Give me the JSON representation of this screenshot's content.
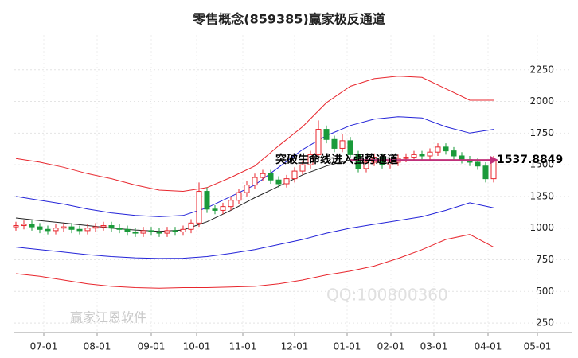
{
  "chart_data": {
    "type": "candlestick",
    "title": "零售概念(859385)赢家极反通道",
    "x": [
      0,
      1,
      2,
      3,
      4,
      5,
      6,
      7,
      8,
      9,
      10,
      11,
      12,
      13,
      14,
      15,
      16,
      17,
      18,
      19,
      20,
      21,
      22,
      23,
      24,
      25,
      26,
      27,
      28,
      29,
      30,
      31,
      32,
      33,
      34,
      35,
      36,
      37,
      38,
      39,
      40,
      41,
      42,
      43,
      44,
      45,
      46,
      47,
      48,
      49,
      50,
      51,
      52,
      53,
      54,
      55,
      56,
      57,
      58,
      59,
      60
    ],
    "open": [
      1010,
      1020,
      1030,
      1010,
      990,
      980,
      1000,
      1010,
      990,
      980,
      1000,
      1010,
      1020,
      1000,
      990,
      970,
      960,
      980,
      970,
      960,
      980,
      970,
      990,
      1040,
      1290,
      1150,
      1140,
      1170,
      1220,
      1280,
      1340,
      1400,
      1430,
      1380,
      1350,
      1390,
      1450,
      1500,
      1580,
      1780,
      1700,
      1630,
      1690,
      1580,
      1470,
      1520,
      1560,
      1500,
      1520,
      1550,
      1560,
      1580,
      1570,
      1600,
      1640,
      1610,
      1570,
      1540,
      1520,
      1490,
      1390
    ],
    "high": [
      1050,
      1060,
      1060,
      1040,
      1020,
      1030,
      1040,
      1040,
      1020,
      1030,
      1040,
      1050,
      1050,
      1030,
      1020,
      1000,
      1010,
      1010,
      1000,
      1010,
      1010,
      1020,
      1070,
      1360,
      1320,
      1180,
      1200,
      1250,
      1310,
      1370,
      1430,
      1460,
      1460,
      1410,
      1420,
      1480,
      1530,
      1610,
      1850,
      1810,
      1730,
      1740,
      1720,
      1610,
      1550,
      1590,
      1590,
      1550,
      1580,
      1590,
      1610,
      1610,
      1630,
      1670,
      1670,
      1640,
      1600,
      1570,
      1550,
      1520,
      1570
    ],
    "low": [
      980,
      990,
      980,
      960,
      950,
      950,
      970,
      960,
      950,
      950,
      970,
      980,
      970,
      960,
      940,
      930,
      930,
      940,
      930,
      930,
      940,
      940,
      960,
      1010,
      1120,
      1110,
      1110,
      1140,
      1190,
      1250,
      1310,
      1370,
      1350,
      1320,
      1320,
      1360,
      1420,
      1470,
      1550,
      1670,
      1600,
      1600,
      1550,
      1440,
      1440,
      1490,
      1470,
      1470,
      1490,
      1520,
      1530,
      1540,
      1540,
      1570,
      1580,
      1540,
      1510,
      1490,
      1460,
      1360,
      1360
    ],
    "close": [
      1020,
      1030,
      1010,
      990,
      980,
      1000,
      1010,
      990,
      980,
      1000,
      1010,
      1020,
      1000,
      990,
      970,
      960,
      980,
      970,
      960,
      980,
      970,
      990,
      1040,
      1290,
      1150,
      1140,
      1170,
      1220,
      1280,
      1340,
      1400,
      1430,
      1380,
      1350,
      1390,
      1450,
      1500,
      1580,
      1780,
      1700,
      1630,
      1690,
      1580,
      1470,
      1520,
      1560,
      1500,
      1520,
      1550,
      1560,
      1580,
      1570,
      1600,
      1640,
      1610,
      1570,
      1540,
      1520,
      1490,
      1390,
      1537.8849
    ],
    "up_color": "#e8262d",
    "down_color": "#1a9a3a",
    "lines_x": [
      0,
      3,
      6,
      9,
      12,
      15,
      18,
      21,
      24,
      27,
      30,
      33,
      36,
      39,
      42,
      45,
      48,
      51,
      54,
      57,
      60
    ],
    "lines": [
      {
        "color": "#e8262d",
        "values": [
          1550,
          1520,
          1480,
          1430,
          1390,
          1340,
          1300,
          1290,
          1320,
          1400,
          1490,
          1650,
          1800,
          1990,
          2120,
          2180,
          2200,
          2190,
          2100,
          2010,
          2010
        ]
      },
      {
        "color": "#2323d8",
        "values": [
          1250,
          1220,
          1190,
          1150,
          1120,
          1100,
          1090,
          1100,
          1160,
          1250,
          1340,
          1480,
          1620,
          1730,
          1810,
          1860,
          1880,
          1870,
          1800,
          1750,
          1780
        ]
      },
      {
        "color": "#222222",
        "values": [
          1080,
          1060,
          1040,
          1020,
          1000,
          985,
          975,
          985,
          1050,
          1140,
          1240,
          1330,
          1420,
          1490,
          1540,
          null,
          null,
          null,
          null,
          null,
          null
        ]
      },
      {
        "color": "#2323d8",
        "values": [
          850,
          830,
          810,
          790,
          775,
          765,
          760,
          762,
          775,
          800,
          830,
          870,
          910,
          960,
          1000,
          1030,
          1060,
          1090,
          1140,
          1200,
          1160
        ]
      },
      {
        "color": "#e8262d",
        "values": [
          640,
          620,
          590,
          560,
          540,
          530,
          525,
          530,
          530,
          535,
          540,
          560,
          590,
          630,
          660,
          700,
          760,
          830,
          910,
          950,
          850
        ]
      }
    ],
    "xlim": [
      -0.2,
      69.8
    ],
    "ylim": [
      175,
      2525
    ],
    "xticks": [
      {
        "value": 3.5,
        "label": "07-01"
      },
      {
        "value": 10.2,
        "label": "08-01"
      },
      {
        "value": 17,
        "label": "09-01"
      },
      {
        "value": 22.7,
        "label": "10-01"
      },
      {
        "value": 28.5,
        "label": "11-01"
      },
      {
        "value": 35,
        "label": "12-01"
      },
      {
        "value": 41.6,
        "label": "01-01"
      },
      {
        "value": 47.1,
        "label": "02-01"
      },
      {
        "value": 52.5,
        "label": "03-01"
      },
      {
        "value": 59.3,
        "label": "04-01"
      },
      {
        "value": 65.5,
        "label": "05-01"
      }
    ],
    "yticks": [
      250,
      500,
      750,
      1000,
      1250,
      1500,
      1750,
      2000,
      2250
    ],
    "grid": true,
    "annotation": {
      "text": "突破生命线进入强势通道",
      "color": "#c0307a"
    },
    "watermarks": [
      "赢家江恩软件",
      "QQ:100800360"
    ]
  }
}
